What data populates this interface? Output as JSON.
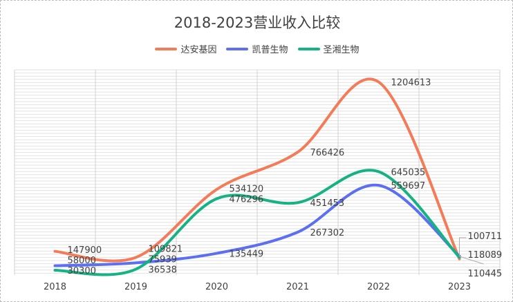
{
  "chart_data": {
    "type": "line",
    "title": "2018-2023营业收入比较",
    "categories": [
      "2018",
      "2019",
      "2020",
      "2021",
      "2022",
      "2023"
    ],
    "ylim": [
      0,
      1280000
    ],
    "legend_position": "top",
    "grid": true,
    "series": [
      {
        "name": "达安基因",
        "color": "#f47b58",
        "values": [
          147900,
          109821,
          534120,
          766426,
          1204613,
          100711
        ]
      },
      {
        "name": "凯普生物",
        "color": "#5b6ff0",
        "values": [
          58000,
          75939,
          135449,
          267302,
          559697,
          118089
        ]
      },
      {
        "name": "圣湘生物",
        "color": "#16b283",
        "values": [
          30300,
          36538,
          476296,
          451453,
          645035,
          110445
        ]
      }
    ]
  }
}
